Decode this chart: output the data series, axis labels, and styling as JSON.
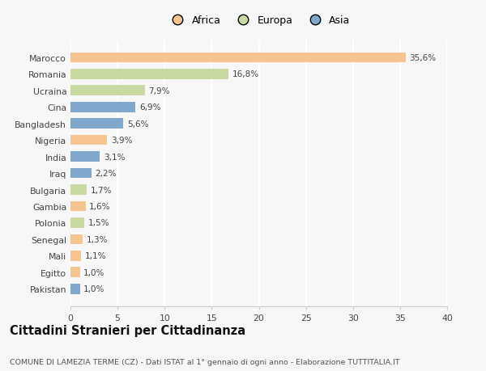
{
  "categories": [
    "Marocco",
    "Romania",
    "Ucraina",
    "Cina",
    "Bangladesh",
    "Nigeria",
    "India",
    "Iraq",
    "Bulgaria",
    "Gambia",
    "Polonia",
    "Senegal",
    "Mali",
    "Egitto",
    "Pakistan"
  ],
  "values": [
    35.6,
    16.8,
    7.9,
    6.9,
    5.6,
    3.9,
    3.1,
    2.2,
    1.7,
    1.6,
    1.5,
    1.3,
    1.1,
    1.0,
    1.0
  ],
  "labels": [
    "35,6%",
    "16,8%",
    "7,9%",
    "6,9%",
    "5,6%",
    "3,9%",
    "3,1%",
    "2,2%",
    "1,7%",
    "1,6%",
    "1,5%",
    "1,3%",
    "1,1%",
    "1,0%",
    "1,0%"
  ],
  "colors": [
    "#f5c491",
    "#c8d9a2",
    "#c8d9a2",
    "#7fa8cc",
    "#7fa8cc",
    "#f5c491",
    "#7fa8cc",
    "#7fa8cc",
    "#c8d9a2",
    "#f5c491",
    "#c8d9a2",
    "#f5c491",
    "#f5c491",
    "#f5c491",
    "#7fa8cc"
  ],
  "legend": [
    {
      "label": "Africa",
      "color": "#f5c491"
    },
    {
      "label": "Europa",
      "color": "#c8d9a2"
    },
    {
      "label": "Asia",
      "color": "#7fa8cc"
    }
  ],
  "xlim": [
    0,
    40
  ],
  "xticks": [
    0,
    5,
    10,
    15,
    20,
    25,
    30,
    35,
    40
  ],
  "title": "Cittadini Stranieri per Cittadinanza",
  "subtitle": "COMUNE DI LAMEZIA TERME (CZ) - Dati ISTAT al 1° gennaio di ogni anno - Elaborazione TUTTITALIA.IT",
  "background_color": "#f7f7f7",
  "bar_height": 0.62,
  "label_fontsize": 7.5,
  "tick_fontsize": 7.8,
  "title_fontsize": 10.5,
  "subtitle_fontsize": 6.8
}
